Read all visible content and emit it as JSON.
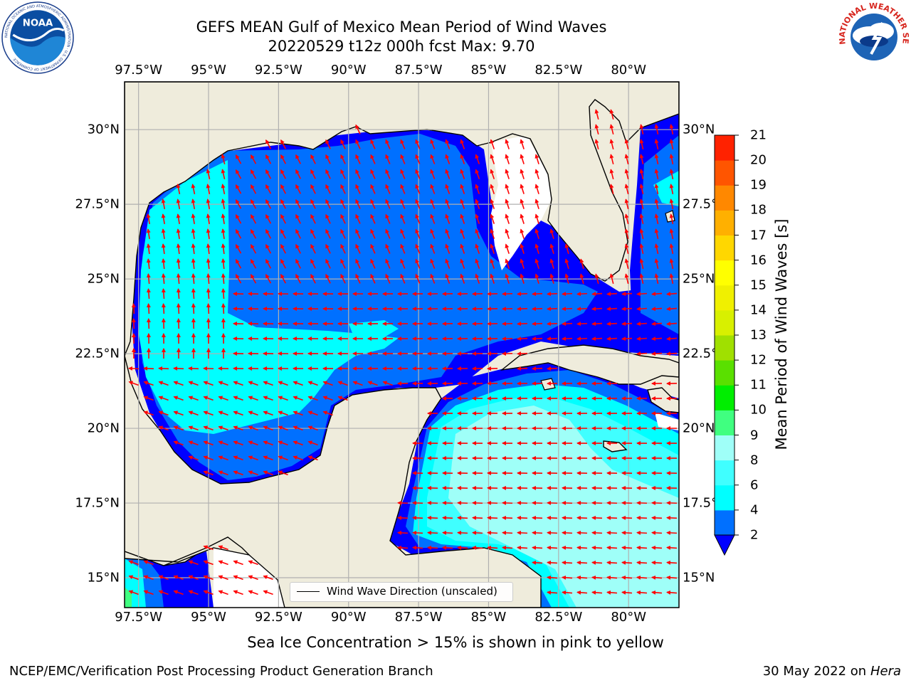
{
  "header": {
    "title_line1": "GEFS MEAN Gulf of Mexico Mean Period of Wind Waves",
    "title_line2": "20220529 t12z 000h fcst   Max: 9.70"
  },
  "logos": {
    "left": "NOAA",
    "left_ring_text": "NATIONAL OCEANIC AND ATMOSPHERIC ADMINISTRATION · U.S. DEPARTMENT OF COMMERCE",
    "right_ring_text": "NATIONAL WEATHER SERVICE"
  },
  "map": {
    "lon_ticks": [
      "97.5°W",
      "95°W",
      "92.5°W",
      "90°W",
      "87.5°W",
      "85°W",
      "82.5°W",
      "80°W"
    ],
    "lat_ticks": [
      "30°N",
      "27.5°N",
      "25°N",
      "22.5°N",
      "20°N",
      "17.5°N",
      "15°N"
    ],
    "lon_values": [
      -97.5,
      -95,
      -92.5,
      -90,
      -87.5,
      -85,
      -82.5,
      -80
    ],
    "lat_values": [
      30,
      27.5,
      25,
      22.5,
      20,
      17.5,
      15
    ],
    "extent": {
      "lon_min": -98,
      "lon_max": -78.2,
      "lat_min": 14.0,
      "lat_max": 31.6
    },
    "legend_label": "Wind Wave Direction (unscaled)",
    "land_color": "#efecdc",
    "arrow_color": "#ff0000",
    "grid": true
  },
  "colorbar": {
    "title": "Mean Period of Wind Waves [s]",
    "levels": [
      2,
      4,
      6,
      8,
      9,
      10,
      11,
      12,
      13,
      14,
      15,
      16,
      17,
      18,
      19,
      20,
      21
    ],
    "labels": [
      "2",
      "4",
      "6",
      "8",
      "9",
      "10",
      "11",
      "12",
      "13",
      "14",
      "15",
      "16",
      "17",
      "18",
      "19",
      "20",
      "21"
    ],
    "colors": [
      "#0070ff",
      "#00ffff",
      "#40ffff",
      "#9ffff8",
      "#40ff80",
      "#00ee00",
      "#5ae000",
      "#a0e000",
      "#d8f000",
      "#f0f000",
      "#ffff00",
      "#ffd700",
      "#ffb000",
      "#ff8800",
      "#ff5500",
      "#ff2200",
      "#ff0000"
    ],
    "under_color": "#0000ff",
    "extend": "min"
  },
  "notes": {
    "ice": "Sea Ice Concentration > 15% is shown in pink to yellow",
    "branch": "NCEP/EMC/Verification Post Processing Product Generation Branch",
    "date": "30 May 2022 on",
    "machine": "Hera"
  }
}
